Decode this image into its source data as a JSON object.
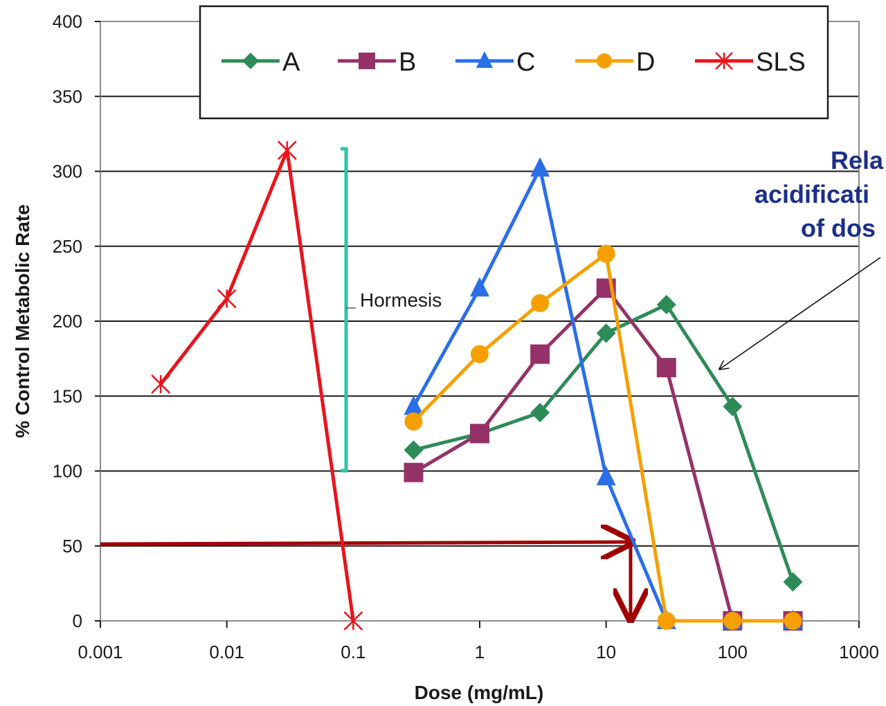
{
  "chart_data": {
    "type": "line",
    "x_scale": "log",
    "xlabel": "Dose (mg/mL)",
    "ylabel": "% Control Metabolic Rate",
    "xlim": [
      0.001,
      1000
    ],
    "ylim": [
      0,
      400
    ],
    "x_tick_labels": [
      "0.001",
      "0.01",
      "0.1",
      "1",
      "10",
      "100",
      "1000"
    ],
    "y_tick_labels": [
      "0",
      "50",
      "100",
      "150",
      "200",
      "250",
      "300",
      "350",
      "400"
    ],
    "grid": true,
    "legend_position": "top",
    "series": [
      {
        "name": "A",
        "color": "#2e8b57",
        "marker": "diamond",
        "points": [
          [
            0.3,
            114
          ],
          [
            1,
            125
          ],
          [
            3,
            139
          ],
          [
            10,
            192
          ],
          [
            30,
            211
          ],
          [
            100,
            143
          ],
          [
            300,
            26
          ]
        ]
      },
      {
        "name": "B",
        "color": "#943268",
        "marker": "square",
        "points": [
          [
            0.3,
            99
          ],
          [
            1,
            125
          ],
          [
            3,
            178
          ],
          [
            10,
            222
          ],
          [
            30,
            169
          ],
          [
            100,
            0
          ],
          [
            300,
            0
          ]
        ]
      },
      {
        "name": "C",
        "color": "#2a6ee8",
        "marker": "triangle",
        "points": [
          [
            0.3,
            143
          ],
          [
            1,
            222
          ],
          [
            3,
            302
          ],
          [
            10,
            96
          ],
          [
            30,
            0
          ],
          [
            100,
            0
          ],
          [
            300,
            0
          ]
        ]
      },
      {
        "name": "D",
        "color": "#f5a000",
        "marker": "circle",
        "points": [
          [
            0.3,
            133
          ],
          [
            1,
            178
          ],
          [
            3,
            212
          ],
          [
            10,
            245
          ],
          [
            30,
            0
          ],
          [
            100,
            0
          ],
          [
            300,
            0
          ]
        ]
      },
      {
        "name": "SLS",
        "color": "#e8141c",
        "marker": "star",
        "points": [
          [
            0.003,
            158
          ],
          [
            0.01,
            215
          ],
          [
            0.03,
            314
          ],
          [
            0.1,
            0
          ]
        ]
      }
    ],
    "annotations": {
      "hormesis_label": "Hormesis",
      "note_lines": [
        "Rela",
        "acidificati",
        "of dos"
      ]
    }
  }
}
